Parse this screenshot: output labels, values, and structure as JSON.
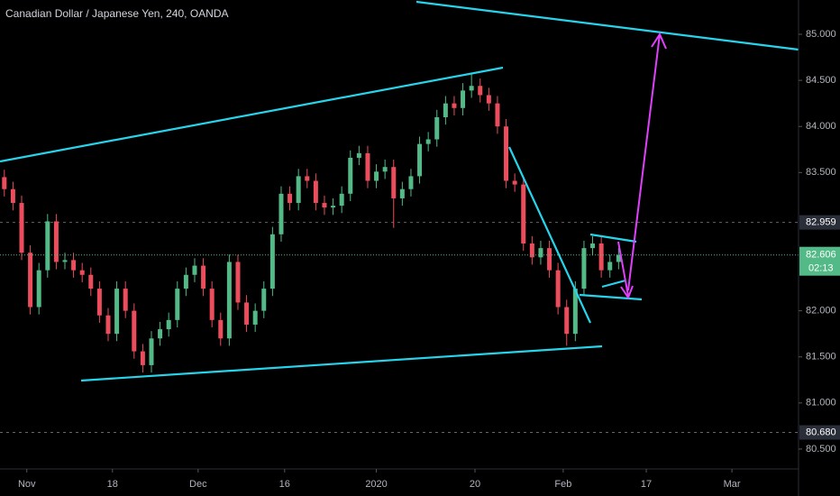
{
  "chart_data": {
    "type": "candlestick",
    "title": "Canadian Dollar / Japanese Yen, 240, OANDA",
    "up_color": "#53b987",
    "down_color": "#eb4d5c",
    "x": [
      0.5,
      1.5,
      2.5,
      3.5,
      4.5,
      5.5,
      6.5,
      7.5,
      8.5,
      9.5,
      10.5,
      11.5,
      12.5,
      13.5,
      14.5,
      15.5,
      16.5,
      17.5,
      18.5,
      19.5,
      20.5,
      21.5,
      22.5,
      23.5,
      24.5,
      25.5,
      26.5,
      27.5,
      28.5,
      29.5,
      30.5,
      31.5,
      32.5,
      33.5,
      34.5,
      35.5,
      36.5,
      37.5,
      38.5,
      39.5,
      40.5,
      41.5,
      42.5,
      43.5,
      44.5,
      45.5,
      46.5,
      47.5,
      48.5,
      49.5,
      50.5,
      51.5,
      52.5,
      53.5,
      54.5,
      55.5,
      56.5,
      57.5,
      58.5,
      59.5,
      60.5,
      61.5,
      62.5,
      63.5,
      64.5,
      65.5,
      66.5,
      67.5,
      68.5,
      69.5,
      70.5,
      71.5
    ],
    "open": [
      83.45,
      83.32,
      83.17,
      82.63,
      82.04,
      82.44,
      82.97,
      82.53,
      82.55,
      82.44,
      82.39,
      82.24,
      81.95,
      81.75,
      82.24,
      82.0,
      81.56,
      81.41,
      81.7,
      81.8,
      81.9,
      82.24,
      82.39,
      82.49,
      82.24,
      81.9,
      81.7,
      82.53,
      82.09,
      81.85,
      82.0,
      82.24,
      82.83,
      83.27,
      83.17,
      83.46,
      83.41,
      83.17,
      83.12,
      83.14,
      83.27,
      83.66,
      83.71,
      83.41,
      83.51,
      83.56,
      83.22,
      83.32,
      83.46,
      83.81,
      83.86,
      84.1,
      84.25,
      84.2,
      84.39,
      84.44,
      84.34,
      84.25,
      84.0,
      83.41,
      83.37,
      82.73,
      82.58,
      82.68,
      82.44,
      82.04,
      81.75,
      82.24,
      82.68,
      82.73,
      82.44,
      82.53
    ],
    "high": [
      83.53,
      83.4,
      83.25,
      82.71,
      82.52,
      83.05,
      83.05,
      82.63,
      82.63,
      82.52,
      82.47,
      82.32,
      82.03,
      82.32,
      82.32,
      82.08,
      81.64,
      81.78,
      81.88,
      81.98,
      82.32,
      82.47,
      82.57,
      82.57,
      82.32,
      81.98,
      82.61,
      82.61,
      82.17,
      82.08,
      82.32,
      82.91,
      83.35,
      83.35,
      83.54,
      83.54,
      83.49,
      83.25,
      83.22,
      83.35,
      83.74,
      83.79,
      83.79,
      83.59,
      83.64,
      83.64,
      83.4,
      83.54,
      83.89,
      83.94,
      84.18,
      84.33,
      84.33,
      84.47,
      84.57,
      84.52,
      84.42,
      84.33,
      84.08,
      83.49,
      83.45,
      82.81,
      82.76,
      82.76,
      82.52,
      82.12,
      82.32,
      82.76,
      82.81,
      82.81,
      82.61,
      82.68
    ],
    "low": [
      83.24,
      83.09,
      82.55,
      81.96,
      81.96,
      82.36,
      82.45,
      82.45,
      82.36,
      82.31,
      82.16,
      81.87,
      81.67,
      81.67,
      81.92,
      81.48,
      81.33,
      81.33,
      81.62,
      81.72,
      81.82,
      82.16,
      82.31,
      82.16,
      81.82,
      81.62,
      81.62,
      82.01,
      81.77,
      81.77,
      81.92,
      82.16,
      82.75,
      83.09,
      83.09,
      83.33,
      83.09,
      83.04,
      83.04,
      83.06,
      83.19,
      83.58,
      83.33,
      83.33,
      83.43,
      82.9,
      83.14,
      83.24,
      83.38,
      83.73,
      83.78,
      84.02,
      84.12,
      84.12,
      84.31,
      84.26,
      84.17,
      83.92,
      83.33,
      83.29,
      82.65,
      82.5,
      82.5,
      82.36,
      81.96,
      81.62,
      81.67,
      82.16,
      82.6,
      82.36,
      82.36,
      82.45
    ],
    "close": [
      83.32,
      83.17,
      82.63,
      82.04,
      82.44,
      82.97,
      82.53,
      82.55,
      82.44,
      82.39,
      82.24,
      81.95,
      81.75,
      82.24,
      82.0,
      81.56,
      81.41,
      81.7,
      81.8,
      81.9,
      82.24,
      82.39,
      82.49,
      82.24,
      81.9,
      81.7,
      82.53,
      82.09,
      81.85,
      82.0,
      82.24,
      82.83,
      83.27,
      83.17,
      83.46,
      83.41,
      83.17,
      83.12,
      83.14,
      83.27,
      83.66,
      83.71,
      83.41,
      83.51,
      83.56,
      83.22,
      83.32,
      83.46,
      83.81,
      83.86,
      84.1,
      84.25,
      84.2,
      84.39,
      84.44,
      84.34,
      84.25,
      84.0,
      83.41,
      83.37,
      82.73,
      82.58,
      82.68,
      82.44,
      82.04,
      81.75,
      82.24,
      82.68,
      82.73,
      82.44,
      82.53,
      82.606
    ],
    "xlim": [
      0,
      92.3
    ],
    "xticks": [
      {
        "value": 3.1,
        "label": "Nov"
      },
      {
        "value": 13.0,
        "label": "18"
      },
      {
        "value": 22.9,
        "label": "Dec"
      },
      {
        "value": 32.9,
        "label": "16"
      },
      {
        "value": 43.5,
        "label": "2020"
      },
      {
        "value": 54.9,
        "label": "20"
      },
      {
        "value": 65.1,
        "label": "Feb"
      },
      {
        "value": 74.7,
        "label": "17"
      },
      {
        "value": 84.6,
        "label": "Mar"
      }
    ],
    "ylim": [
      80.284,
      85.372
    ],
    "yticks": [
      {
        "value": 85,
        "label": "85.000"
      },
      {
        "value": 84.5,
        "label": "84.500"
      },
      {
        "value": 84,
        "label": "84.000"
      },
      {
        "value": 83.5,
        "label": "83.500"
      },
      {
        "value": 82,
        "label": "82.000"
      },
      {
        "value": 81.5,
        "label": "81.500"
      },
      {
        "value": 81,
        "label": "81.000"
      },
      {
        "value": 80.5,
        "label": "80.500"
      }
    ],
    "price_markers": [
      {
        "value": 82.959,
        "label": "82.959"
      },
      {
        "value": 80.68,
        "label": "80.680"
      }
    ],
    "last_price": {
      "value": 82.606,
      "label": "82.606",
      "countdown": "02:13"
    }
  }
}
